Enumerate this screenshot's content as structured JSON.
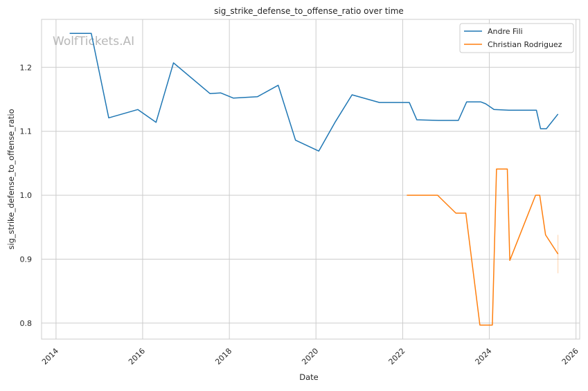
{
  "chart_data": {
    "type": "line",
    "title": "sig_strike_defense_to_offense_ratio over time",
    "xlabel": "Date",
    "ylabel": "sig_strike_defense_to_offense_ratio",
    "watermark": "WolfTickets.AI",
    "xlim": [
      "2013-09-01",
      "2026-02-01"
    ],
    "ylim": [
      0.775,
      1.275
    ],
    "x_ticks": [
      "2014",
      "2016",
      "2018",
      "2020",
      "2022",
      "2024",
      "2026"
    ],
    "y_ticks": [
      "0.8",
      "0.9",
      "1.0",
      "1.1",
      "1.2"
    ],
    "grid": true,
    "legend_position": "top-right",
    "series": [
      {
        "name": "Andre Fili",
        "color": "#1f77b4",
        "x": [
          "2014-04-26",
          "2014-10-25",
          "2015-03-21",
          "2015-11-21",
          "2016-04-23",
          "2016-09-17",
          "2017-07-22",
          "2017-10-21",
          "2018-02-03",
          "2018-08-25",
          "2019-02-17",
          "2019-07-13",
          "2020-01-25",
          "2020-06-13",
          "2020-10-31",
          "2021-06-19",
          "2022-02-26",
          "2022-04-30",
          "2022-10-29",
          "2023-04-15",
          "2023-06-24",
          "2023-10-21",
          "2023-12-02",
          "2024-02-10",
          "2024-06-15",
          "2025-02-01",
          "2025-03-08",
          "2025-04-26",
          "2025-08-02"
        ],
        "values": [
          1.253,
          1.253,
          1.121,
          1.134,
          1.114,
          1.207,
          1.159,
          1.16,
          1.152,
          1.154,
          1.172,
          1.086,
          1.069,
          1.115,
          1.157,
          1.145,
          1.145,
          1.118,
          1.117,
          1.117,
          1.146,
          1.146,
          1.143,
          1.134,
          1.133,
          1.133,
          1.104,
          1.104,
          1.127
        ]
      },
      {
        "name": "Christian Rodriguez",
        "color": "#ff7f0e",
        "x": [
          "2022-02-05",
          "2022-10-22",
          "2023-03-25",
          "2023-06-17",
          "2023-10-14",
          "2024-01-27",
          "2024-03-02",
          "2024-06-01",
          "2024-06-22",
          "2025-01-25",
          "2025-03-01",
          "2025-04-19",
          "2025-08-02"
        ],
        "values": [
          1.0,
          1.0,
          0.972,
          0.972,
          0.797,
          0.797,
          1.041,
          1.041,
          0.898,
          1.0,
          1.0,
          0.938,
          0.908
        ]
      }
    ],
    "error_bar": {
      "x": "2025-08-02",
      "low": 0.878,
      "high": 0.938,
      "color": "#ff7f0e"
    }
  }
}
